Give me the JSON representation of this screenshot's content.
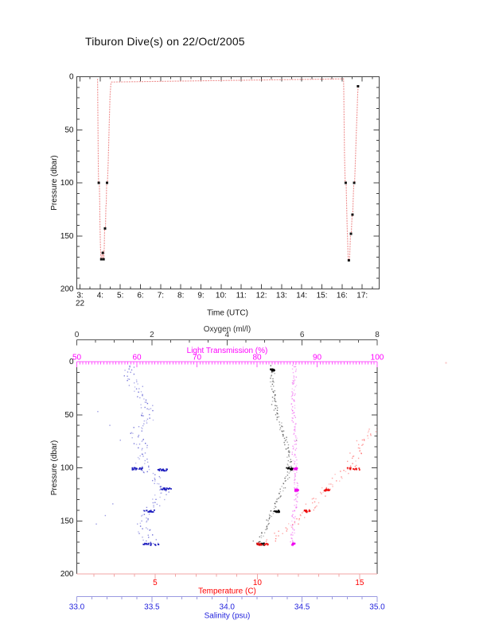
{
  "page": {
    "title": "Tiburon Dive(s) on 22/Oct/2005",
    "background": "#ffffff"
  },
  "chart_data": [
    {
      "type": "line",
      "name": "dive-time-pressure",
      "xlabel": "Time (UTC)",
      "ylabel": "Pressure (dbar)",
      "x_date_label": "22",
      "xlim": [
        2.84,
        17.84
      ],
      "ylim": [
        0,
        200
      ],
      "y_inverted": true,
      "x_minor_step": 0.5,
      "y_minor_step": 10,
      "x_ticks": [
        {
          "v": 3,
          "label": "3:"
        },
        {
          "v": 4,
          "label": "4:"
        },
        {
          "v": 5,
          "label": "5:"
        },
        {
          "v": 6,
          "label": "6:"
        },
        {
          "v": 7,
          "label": "7:"
        },
        {
          "v": 8,
          "label": "8:"
        },
        {
          "v": 9,
          "label": "9:"
        },
        {
          "v": 10,
          "label": "10:"
        },
        {
          "v": 11,
          "label": "11:"
        },
        {
          "v": 12,
          "label": "12:"
        },
        {
          "v": 13,
          "label": "13:"
        },
        {
          "v": 14,
          "label": "14:"
        },
        {
          "v": 15,
          "label": "15:"
        },
        {
          "v": 16,
          "label": "16:"
        },
        {
          "v": 17,
          "label": "17:"
        }
      ],
      "y_ticks": [
        {
          "v": 0,
          "label": "0"
        },
        {
          "v": 50,
          "label": "50"
        },
        {
          "v": 100,
          "label": "100"
        },
        {
          "v": 150,
          "label": "150"
        },
        {
          "v": 200,
          "label": "200"
        }
      ],
      "line_color": "#ef9191",
      "marker_color": "#111111",
      "frame_color": "#444444",
      "series": [
        {
          "name": "vehicle-depth",
          "points": [
            [
              3.87,
              2
            ],
            [
              3.88,
              18
            ],
            [
              3.895,
              55
            ],
            [
              3.91,
              88
            ],
            [
              3.92,
              100
            ],
            [
              3.96,
              101
            ],
            [
              3.975,
              118
            ],
            [
              3.99,
              138
            ],
            [
              4.01,
              156
            ],
            [
              4.03,
              168
            ],
            [
              4.05,
              172
            ],
            [
              4.08,
              171
            ],
            [
              4.1,
              166
            ],
            [
              4.125,
              165
            ],
            [
              4.14,
              170
            ],
            [
              4.18,
              172
            ],
            [
              4.2,
              161
            ],
            [
              4.22,
              143
            ],
            [
              4.26,
              143
            ],
            [
              4.285,
              122
            ],
            [
              4.3,
              120
            ],
            [
              4.32,
              101
            ],
            [
              4.36,
              100
            ],
            [
              4.4,
              80
            ],
            [
              4.445,
              46
            ],
            [
              4.49,
              18
            ],
            [
              4.53,
              7
            ],
            [
              4.56,
              5
            ],
            [
              16.07,
              2
            ],
            [
              16.085,
              12
            ],
            [
              16.1,
              40
            ],
            [
              16.12,
              72
            ],
            [
              16.15,
              98
            ],
            [
              16.16,
              100
            ],
            [
              16.2,
              101
            ],
            [
              16.22,
              118
            ],
            [
              16.25,
              140
            ],
            [
              16.28,
              158
            ],
            [
              16.3,
              170
            ],
            [
              16.315,
              172
            ],
            [
              16.355,
              173
            ],
            [
              16.38,
              168
            ],
            [
              16.4,
              158
            ],
            [
              16.42,
              148
            ],
            [
              16.46,
              147
            ],
            [
              16.48,
              138
            ],
            [
              16.5,
              130
            ],
            [
              16.53,
              129
            ],
            [
              16.555,
              114
            ],
            [
              16.58,
              101
            ],
            [
              16.62,
              100
            ],
            [
              16.645,
              88
            ],
            [
              16.68,
              68
            ],
            [
              16.71,
              50
            ],
            [
              16.745,
              32
            ],
            [
              16.775,
              16
            ],
            [
              16.8,
              8
            ]
          ]
        }
      ],
      "markers": [
        [
          3.93,
          100
        ],
        [
          4.055,
          172
        ],
        [
          4.13,
          166
        ],
        [
          4.17,
          172
        ],
        [
          4.24,
          143
        ],
        [
          4.34,
          100
        ],
        [
          16.18,
          100
        ],
        [
          16.335,
          173
        ],
        [
          16.44,
          148
        ],
        [
          16.515,
          130
        ],
        [
          16.6,
          100
        ],
        [
          16.79,
          9
        ]
      ]
    },
    {
      "type": "scatter",
      "name": "profile-multivariable",
      "ylabel": "Pressure (dbar)",
      "ylim": [
        0,
        200
      ],
      "y_minor_step": 10,
      "y_ticks": [
        {
          "v": 0,
          "label": "0"
        },
        {
          "v": 50,
          "label": "50"
        },
        {
          "v": 100,
          "label": "100"
        },
        {
          "v": 150,
          "label": "150"
        },
        {
          "v": 200,
          "label": "200"
        }
      ],
      "frame_color": "#444444",
      "axes": [
        {
          "id": "oxygen",
          "label": "Oxygen (ml/l)",
          "position": "top-outer",
          "color": "#333333",
          "line_color": "#555555",
          "lim": [
            0,
            8
          ],
          "minor_step": 0.5,
          "ticks": [
            {
              "v": 0,
              "label": "0"
            },
            {
              "v": 2,
              "label": "2"
            },
            {
              "v": 4,
              "label": "4"
            },
            {
              "v": 6,
              "label": "6"
            },
            {
              "v": 8,
              "label": "8"
            }
          ]
        },
        {
          "id": "light",
          "label": "Light Transmission (%)",
          "position": "top",
          "color": "#ff00ff",
          "line_color": "#ff55ff",
          "lim": [
            50,
            100
          ],
          "minor_step": 0.5,
          "ticks": [
            {
              "v": 50,
              "label": "50"
            },
            {
              "v": 60,
              "label": "60"
            },
            {
              "v": 70,
              "label": "70"
            },
            {
              "v": 80,
              "label": "80"
            },
            {
              "v": 90,
              "label": "90"
            },
            {
              "v": 100,
              "label": "100"
            }
          ]
        },
        {
          "id": "temp",
          "label": "Temperature (C)",
          "position": "bottom",
          "color": "#ff0000",
          "line_color": "#f2a5a5",
          "lim": [
            1.17,
            15.86
          ],
          "minor_step": 1,
          "ticks": [
            {
              "v": 5,
              "label": "5"
            },
            {
              "v": 10,
              "label": "10"
            },
            {
              "v": 15,
              "label": "15"
            }
          ]
        },
        {
          "id": "sal",
          "label": "Salinity (psu)",
          "position": "bottom-outer",
          "color": "#2323dd",
          "line_color": "#9a9ae0",
          "lim": [
            33.0,
            35.0
          ],
          "minor_step": 0.1,
          "ticks": [
            {
              "v": 33,
              "label": "33.0"
            },
            {
              "v": 33.5,
              "label": "33.5"
            },
            {
              "v": 34,
              "label": "34.0"
            },
            {
              "v": 34.5,
              "label": "34.5"
            },
            {
              "v": 35,
              "label": "35.0"
            }
          ]
        }
      ],
      "series": [
        {
          "name": "Salinity",
          "axis": "sal",
          "color": "#3a3ac8",
          "dense_color": "#1b1bbe",
          "seed": 11,
          "jitter": 0.045,
          "density": 1.0,
          "anchors": [
            [
              33.35,
              4
            ],
            [
              33.35,
              12
            ],
            [
              33.37,
              18
            ],
            [
              33.41,
              26
            ],
            [
              33.45,
              36
            ],
            [
              33.48,
              48
            ],
            [
              33.46,
              56
            ],
            [
              33.41,
              63
            ],
            [
              33.39,
              70
            ],
            [
              33.43,
              80
            ],
            [
              33.46,
              88
            ],
            [
              33.43,
              95
            ],
            [
              33.47,
              102
            ],
            [
              33.52,
              110
            ],
            [
              33.57,
              118
            ],
            [
              33.59,
              123
            ],
            [
              33.54,
              130
            ],
            [
              33.5,
              138
            ],
            [
              33.47,
              146
            ],
            [
              33.44,
              155
            ],
            [
              33.46,
              163
            ],
            [
              33.5,
              170
            ],
            [
              33.5,
              174
            ]
          ],
          "outliers": [
            [
              33.14,
              47
            ],
            [
              33.22,
              60
            ],
            [
              33.29,
              74
            ],
            [
              33.24,
              134
            ],
            [
              33.19,
              145
            ],
            [
              33.13,
              153
            ]
          ],
          "dense": [
            [
              33.37,
              33.44,
              101
            ],
            [
              33.54,
              33.62,
              102
            ],
            [
              33.56,
              33.63,
              120
            ],
            [
              33.45,
              33.53,
              141
            ],
            [
              33.44,
              33.55,
              172
            ]
          ]
        },
        {
          "name": "Oxygen",
          "axis": "oxygen",
          "color": "#333333",
          "dense_color": "#000000",
          "seed": 7,
          "jitter": 0.06,
          "density": 0.9,
          "anchors": [
            [
              5.22,
              5
            ],
            [
              5.21,
              16
            ],
            [
              5.22,
              28
            ],
            [
              5.25,
              40
            ],
            [
              5.33,
              50
            ],
            [
              5.43,
              60
            ],
            [
              5.52,
              70
            ],
            [
              5.6,
              80
            ],
            [
              5.65,
              90
            ],
            [
              5.68,
              98
            ],
            [
              5.66,
              104
            ],
            [
              5.58,
              112
            ],
            [
              5.47,
              120
            ],
            [
              5.36,
              128
            ],
            [
              5.26,
              136
            ],
            [
              5.18,
              143
            ],
            [
              5.08,
              152
            ],
            [
              4.98,
              160
            ],
            [
              4.9,
              166
            ],
            [
              4.84,
              173
            ]
          ],
          "outliers": [
            [
              5.85,
              74
            ],
            [
              4.7,
              169
            ]
          ],
          "dense": [
            [
              5.16,
              5.28,
              8
            ],
            [
              5.58,
              5.76,
              101
            ],
            [
              5.24,
              5.4,
              141
            ],
            [
              4.78,
              5.0,
              172
            ]
          ]
        },
        {
          "name": "Light Transmission",
          "axis": "light",
          "color": "#ee55ee",
          "dense_color": "#ee00ee",
          "seed": 5,
          "jitter": 0.35,
          "density": 0.9,
          "anchors": [
            [
              86.2,
              2
            ],
            [
              86.3,
              12
            ],
            [
              86.2,
              24
            ],
            [
              86.0,
              36
            ],
            [
              86.1,
              48
            ],
            [
              86.2,
              60
            ],
            [
              86.3,
              72
            ],
            [
              86.2,
              84
            ],
            [
              86.3,
              95
            ],
            [
              86.4,
              104
            ],
            [
              86.5,
              114
            ],
            [
              86.6,
              122
            ],
            [
              86.4,
              132
            ],
            [
              86.2,
              142
            ],
            [
              86.0,
              152
            ],
            [
              85.9,
              160
            ],
            [
              85.9,
              168
            ],
            [
              86.0,
              174
            ]
          ],
          "outliers": [],
          "dense": [
            [
              86.1,
              86.7,
              101
            ],
            [
              86.3,
              86.9,
              121
            ],
            [
              85.7,
              86.4,
              172
            ]
          ]
        },
        {
          "name": "Temperature",
          "axis": "temp",
          "color": "#ff5555",
          "dense_color": "#ee1111",
          "seed": 3,
          "jitter": 0.3,
          "density": 0.85,
          "anchors": [
            [
              15.75,
              63
            ],
            [
              15.45,
              70
            ],
            [
              15.1,
              77
            ],
            [
              14.85,
              85
            ],
            [
              14.65,
              93
            ],
            [
              14.45,
              100
            ],
            [
              14.1,
              107
            ],
            [
              13.75,
              113
            ],
            [
              13.4,
              120
            ],
            [
              13.05,
              127
            ],
            [
              12.75,
              133
            ],
            [
              12.5,
              140
            ],
            [
              12.1,
              147
            ],
            [
              11.7,
              153
            ],
            [
              11.3,
              159
            ],
            [
              10.9,
              164
            ],
            [
              10.5,
              169
            ],
            [
              10.15,
              173
            ]
          ],
          "outliers": [
            [
              15.8,
              66
            ],
            [
              12.9,
              136
            ]
          ],
          "dense": [
            [
              14.3,
              15.0,
              101
            ],
            [
              13.25,
              13.55,
              121
            ],
            [
              12.3,
              12.65,
              141
            ],
            [
              9.95,
              10.6,
              172
            ]
          ]
        }
      ]
    }
  ]
}
